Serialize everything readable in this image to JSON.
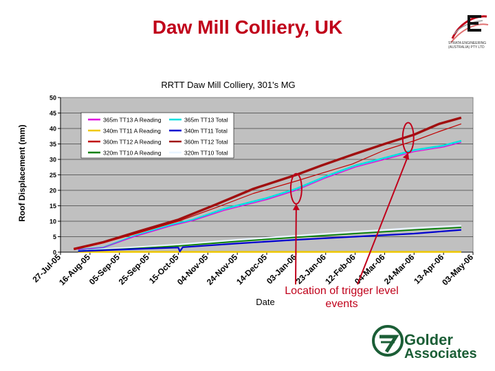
{
  "slide": {
    "title": "Daw Mill Colliery, UK",
    "callout": "Location of trigger level events",
    "logo_top_text": "STRATA ENGINEERING (AUSTRALIA) PTY LTD",
    "golder_line1": "Golder",
    "golder_line2": "Associates",
    "accent_color": "#c0001a",
    "icons": [
      "strata-logo-icon",
      "golder-logo-icon"
    ]
  },
  "chart_data": {
    "type": "line",
    "title": "RRTT Daw Mill Colliery, 301's MG",
    "xlabel": "Date",
    "ylabel": "Roof Displacement (mm)",
    "ylim": [
      0,
      50
    ],
    "yticks": [
      0,
      5,
      10,
      15,
      20,
      25,
      30,
      35,
      40,
      45,
      50
    ],
    "xlim": [
      "2005-07-27",
      "2006-05-03"
    ],
    "xticks": [
      "2005-07-27",
      "2005-08-16",
      "2005-09-05",
      "2005-09-25",
      "2005-10-15",
      "2005-11-04",
      "2005-11-24",
      "2005-12-14",
      "2006-01-03",
      "2006-01-23",
      "2006-02-12",
      "2006-03-04",
      "2006-03-24",
      "2006-04-13",
      "2006-05-03"
    ],
    "xtick_labels": [
      "27-Jul-05",
      "16-Aug-05",
      "05-Sep-05",
      "25-Sep-05",
      "15-Oct-05",
      "04-Nov-05",
      "24-Nov-05",
      "14-Dec-05",
      "03-Jan-06",
      "23-Jan-06",
      "12-Feb-06",
      "04-Mar-06",
      "24-Mar-06",
      "13-Apr-06",
      "03-May-06"
    ],
    "grid": true,
    "legend_position": "top-left",
    "plot_background": "#c0c0c0",
    "series": [
      {
        "name": "365m TT13 A Reading",
        "color": "#e000e0",
        "width": 1.2,
        "points": [
          [
            "2005-08-08",
            0.8
          ],
          [
            "2005-08-25",
            1.5
          ],
          [
            "2005-09-15",
            5
          ],
          [
            "2005-10-10",
            8.5
          ],
          [
            "2005-10-25",
            10.2
          ],
          [
            "2005-11-15",
            13.5
          ],
          [
            "2005-12-14",
            17
          ],
          [
            "2006-01-03",
            20
          ],
          [
            "2006-01-23",
            24
          ],
          [
            "2006-02-12",
            27.5
          ],
          [
            "2006-03-04",
            30
          ],
          [
            "2006-03-24",
            32.5
          ],
          [
            "2006-04-13",
            34
          ],
          [
            "2006-04-25",
            35.5
          ]
        ]
      },
      {
        "name": "365m TT13 Total",
        "color": "#00e0e0",
        "width": 2.5,
        "points": [
          [
            "2005-08-08",
            0.8
          ],
          [
            "2005-08-25",
            1.5
          ],
          [
            "2005-09-15",
            5.2
          ],
          [
            "2005-10-10",
            8.8
          ],
          [
            "2005-10-25",
            10.5
          ],
          [
            "2005-11-15",
            14
          ],
          [
            "2005-12-14",
            17.5
          ],
          [
            "2006-01-03",
            20.5
          ],
          [
            "2006-01-23",
            24.5
          ],
          [
            "2006-02-12",
            28
          ],
          [
            "2006-03-04",
            30.5
          ],
          [
            "2006-03-24",
            33
          ],
          [
            "2006-04-13",
            34.5
          ],
          [
            "2006-04-25",
            36
          ]
        ]
      },
      {
        "name": "340m TT11 A Reading",
        "color": "#f0c800",
        "width": 2.5,
        "points": [
          [
            "2005-08-08",
            0.1
          ],
          [
            "2006-04-25",
            0.1
          ]
        ]
      },
      {
        "name": "340m TT11 Total",
        "color": "#0000d0",
        "width": 2.2,
        "points": [
          [
            "2005-08-08",
            0.3
          ],
          [
            "2005-09-15",
            1
          ],
          [
            "2005-10-15",
            1.5
          ],
          [
            "2005-10-16",
            0.2
          ],
          [
            "2005-10-18",
            1.6
          ],
          [
            "2005-11-24",
            2.8
          ],
          [
            "2006-01-03",
            4
          ],
          [
            "2006-02-12",
            5
          ],
          [
            "2006-03-24",
            6
          ],
          [
            "2006-04-25",
            7.2
          ]
        ]
      },
      {
        "name": "360m TT12 A Reading",
        "color": "#c00000",
        "width": 1.2,
        "points": [
          [
            "2005-08-05",
            1
          ],
          [
            "2005-08-25",
            3
          ],
          [
            "2005-09-20",
            6.5
          ],
          [
            "2005-10-15",
            10
          ],
          [
            "2005-11-10",
            14.5
          ],
          [
            "2005-12-05",
            19
          ],
          [
            "2006-01-03",
            23
          ],
          [
            "2006-01-20",
            25.5
          ],
          [
            "2006-02-10",
            28.5
          ],
          [
            "2006-03-04",
            33
          ],
          [
            "2006-03-24",
            36
          ],
          [
            "2006-04-10",
            39
          ],
          [
            "2006-04-25",
            41.5
          ]
        ]
      },
      {
        "name": "360m TT12 Total",
        "color": "#a01010",
        "width": 3.5,
        "points": [
          [
            "2005-08-05",
            1
          ],
          [
            "2005-08-25",
            3.2
          ],
          [
            "2005-09-20",
            7
          ],
          [
            "2005-10-15",
            10.5
          ],
          [
            "2005-11-10",
            15.5
          ],
          [
            "2005-12-05",
            20.5
          ],
          [
            "2006-01-03",
            25
          ],
          [
            "2006-01-20",
            28
          ],
          [
            "2006-02-10",
            31.5
          ],
          [
            "2006-03-04",
            35
          ],
          [
            "2006-03-24",
            38
          ],
          [
            "2006-04-10",
            41.5
          ],
          [
            "2006-04-25",
            43.5
          ]
        ]
      },
      {
        "name": "320m TT10 A Reading",
        "color": "#008000",
        "width": 1.8,
        "points": [
          [
            "2005-08-08",
            0.3
          ],
          [
            "2005-09-15",
            1.2
          ],
          [
            "2005-10-15",
            2
          ],
          [
            "2005-11-24",
            3.5
          ],
          [
            "2006-01-03",
            4.8
          ],
          [
            "2006-02-12",
            6
          ],
          [
            "2006-03-24",
            7.2
          ],
          [
            "2006-04-25",
            8
          ]
        ]
      },
      {
        "name": "320m TT10 Total",
        "color": "#e8f4ff",
        "width": 2.2,
        "points": [
          [
            "2005-08-08",
            0.5
          ],
          [
            "2005-09-15",
            1.6
          ],
          [
            "2005-10-15",
            2.5
          ],
          [
            "2005-11-24",
            4
          ],
          [
            "2006-01-03",
            5.3
          ],
          [
            "2006-02-12",
            6.6
          ],
          [
            "2006-03-24",
            7.8
          ],
          [
            "2006-04-25",
            8.6
          ]
        ]
      }
    ],
    "annotations": [
      {
        "type": "ellipse",
        "x": "2006-01-03",
        "y": 20.5,
        "color": "#c0001a"
      },
      {
        "type": "ellipse",
        "x": "2006-03-20",
        "y": 37,
        "color": "#c0001a"
      }
    ]
  }
}
